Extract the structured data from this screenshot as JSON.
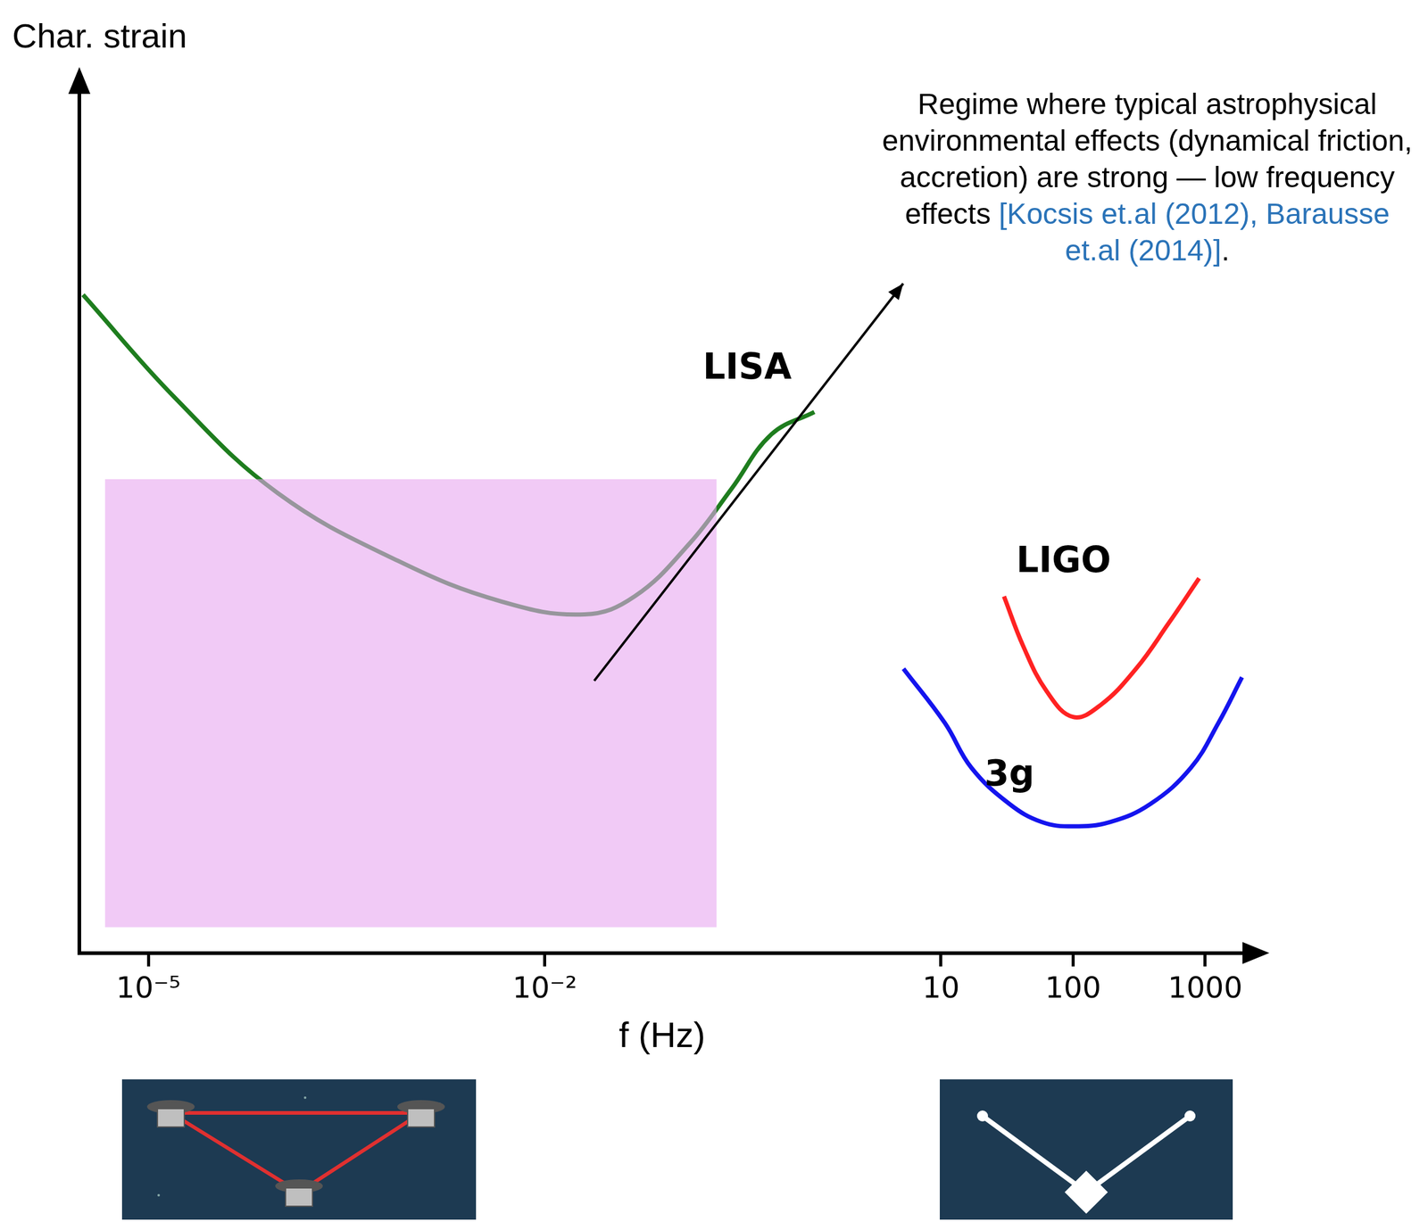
{
  "chart_data": {
    "type": "line",
    "xlabel": "f (Hz)",
    "ylabel": "Char. strain",
    "log": "x",
    "grid": false,
    "tick_labels": "x",
    "xlim": [
      3e-06,
      2000
    ],
    "xticks": [
      {
        "value": 1e-05,
        "label": "10⁻⁵"
      },
      {
        "value": 0.01,
        "label": "10⁻²"
      },
      10,
      100,
      1000
    ],
    "ylim": [
      0,
      100
    ],
    "series": [
      {
        "name": "LISA",
        "color": "#1e7d1e",
        "x": [
          3.2e-06,
          1.6e-05,
          9.5e-05,
          0.00078,
          0.0047,
          0.02,
          0.048,
          0.126,
          0.26,
          0.52,
          1.1
        ],
        "values": [
          76.4,
          64.4,
          53.4,
          45.5,
          40.8,
          39.3,
          41.4,
          47.6,
          53.9,
          60.2,
          62.8
        ]
      },
      {
        "name": "LIGO",
        "color": "#ff2222",
        "x": [
          30,
          42,
          63,
          100,
          162,
          300,
          525,
          900
        ],
        "values": [
          41.4,
          35.6,
          30.4,
          27.4,
          28.8,
          33,
          38.2,
          43.5
        ]
      },
      {
        "name": "3g",
        "color": "#1414ee",
        "x": [
          5.2,
          10.7,
          17,
          33,
          58,
          100,
          190,
          385,
          780,
          1260,
          1900
        ],
        "values": [
          33,
          26.7,
          21.5,
          17.3,
          15.2,
          14.7,
          15.2,
          17.3,
          21.5,
          26.7,
          32
        ]
      }
    ],
    "shaded_region": {
      "xlim": [
        4.7e-06,
        0.2
      ],
      "ylim": [
        3,
        55
      ],
      "color": "#e8a6f0"
    },
    "annotation": {
      "parts": [
        {
          "text": "Regime where typical astrophysical environmental effects (dynamical friction, accretion) are strong — low frequency effects ",
          "color": "#000000"
        },
        {
          "text": "[Kocsis et.al (2012), Barausse et.al (2014)]",
          "color": "#2a73b8"
        },
        {
          "text": ".",
          "color": "#000000"
        }
      ]
    }
  }
}
